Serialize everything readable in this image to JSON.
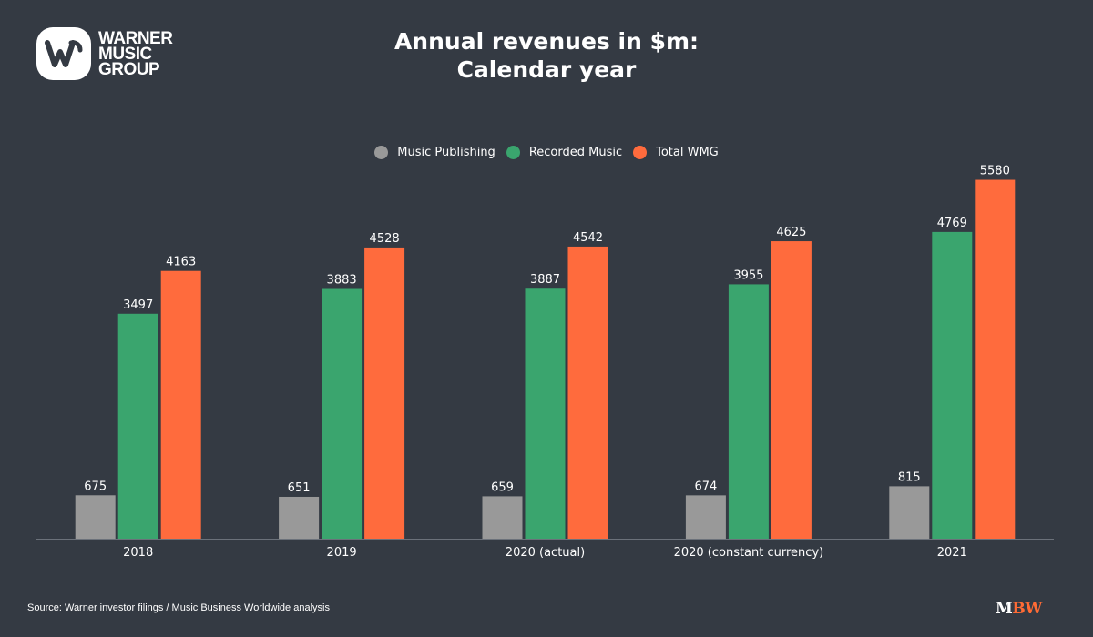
{
  "brand": {
    "logo_lines": [
      "WARNER",
      "MUSIC",
      "GROUP"
    ],
    "watermark_m": "M",
    "watermark_bw": "BW"
  },
  "header": {
    "title_line1": "Annual revenues in $m:",
    "title_line2": "Calendar year"
  },
  "footer": {
    "source": "Source: Warner investor filings / Music Business Worldwide analysis"
  },
  "chart_data": {
    "type": "bar",
    "title": "Annual revenues in $m: Calendar year",
    "xlabel": "",
    "ylabel": "",
    "categories": [
      "2018",
      "2019",
      "2020 (actual)",
      "2020 (constant currency)",
      "2021"
    ],
    "series": [
      {
        "name": "Music Publishing",
        "color": "#999999",
        "values": [
          675,
          651,
          659,
          674,
          815
        ]
      },
      {
        "name": "Recorded Music",
        "color": "#3aa56e",
        "values": [
          3497,
          3883,
          3887,
          3955,
          4769
        ]
      },
      {
        "name": "Total WMG",
        "color": "#ff6b3d",
        "values": [
          4163,
          4528,
          4542,
          4625,
          5580
        ]
      }
    ],
    "ylim": [
      0,
      5800
    ],
    "grid": false,
    "legend_position": "top-center",
    "data_labels": true
  }
}
